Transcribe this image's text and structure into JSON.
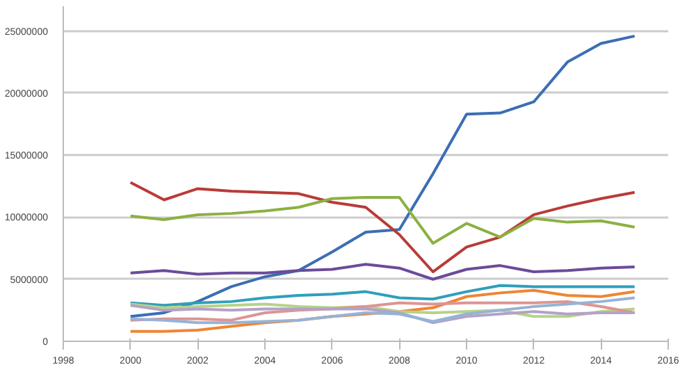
{
  "chart_data": {
    "type": "line",
    "x": [
      2000,
      2001,
      2002,
      2003,
      2004,
      2005,
      2006,
      2007,
      2008,
      2009,
      2010,
      2011,
      2012,
      2013,
      2014,
      2015
    ],
    "xlim": [
      1998,
      2016
    ],
    "xticks": [
      1998,
      2000,
      2002,
      2004,
      2006,
      2008,
      2010,
      2012,
      2014,
      2016
    ],
    "ylim": [
      0,
      27000000
    ],
    "yticks": [
      0,
      5000000,
      10000000,
      15000000,
      20000000,
      25000000
    ],
    "grid": "y",
    "marker": "none",
    "line_style": "solid",
    "series": [
      {
        "color": "#3b6eb4",
        "values": [
          2000000,
          2300000,
          3200000,
          4400000,
          5200000,
          5700000,
          7200000,
          8800000,
          9000000,
          13500000,
          18300000,
          18400000,
          19300000,
          22500000,
          24000000,
          24600000
        ]
      },
      {
        "color": "#b83b38",
        "values": [
          12800000,
          11400000,
          12300000,
          12100000,
          12000000,
          11900000,
          11200000,
          10800000,
          8600000,
          5600000,
          7600000,
          8400000,
          10200000,
          10900000,
          11500000,
          12000000
        ]
      },
      {
        "color": "#8cb043",
        "values": [
          10100000,
          9800000,
          10200000,
          10300000,
          10500000,
          10800000,
          11500000,
          11600000,
          11600000,
          7900000,
          9500000,
          8400000,
          9900000,
          9600000,
          9700000,
          9200000
        ]
      },
      {
        "color": "#6b4b9a",
        "values": [
          5500000,
          5700000,
          5400000,
          5500000,
          5500000,
          5700000,
          5800000,
          6200000,
          5900000,
          5000000,
          5800000,
          6100000,
          5600000,
          5700000,
          5900000,
          6000000
        ]
      },
      {
        "color": "#2f9fba",
        "values": [
          3100000,
          2900000,
          3100000,
          3200000,
          3500000,
          3700000,
          3800000,
          4000000,
          3500000,
          3400000,
          4000000,
          4500000,
          4400000,
          4400000,
          4400000,
          4400000
        ]
      },
      {
        "color": "#ee8533",
        "values": [
          800000,
          800000,
          900000,
          1200000,
          1500000,
          1700000,
          2000000,
          2200000,
          2400000,
          2700000,
          3600000,
          3900000,
          4100000,
          3700000,
          3600000,
          4000000
        ]
      },
      {
        "color": "#b5d38a",
        "values": [
          3000000,
          2700000,
          2800000,
          2900000,
          3000000,
          2800000,
          2700000,
          2800000,
          2400000,
          2300000,
          2400000,
          2500000,
          2000000,
          2000000,
          2400000,
          2600000
        ]
      },
      {
        "color": "#dc9593",
        "values": [
          1700000,
          1800000,
          1800000,
          1700000,
          2300000,
          2500000,
          2600000,
          2800000,
          3100000,
          3000000,
          3100000,
          3100000,
          3100000,
          3200000,
          2800000,
          2300000
        ]
      },
      {
        "color": "#b3a2c7",
        "values": [
          2900000,
          2500000,
          2600000,
          2500000,
          2600000,
          2600000,
          2600000,
          2600000,
          2300000,
          1500000,
          2000000,
          2200000,
          2400000,
          2200000,
          2300000,
          2300000
        ]
      },
      {
        "color": "#95b3d7",
        "values": [
          1800000,
          1700000,
          1500000,
          1500000,
          1600000,
          1700000,
          2000000,
          2300000,
          2200000,
          1600000,
          2200000,
          2500000,
          2800000,
          3000000,
          3200000,
          3500000
        ]
      }
    ]
  }
}
